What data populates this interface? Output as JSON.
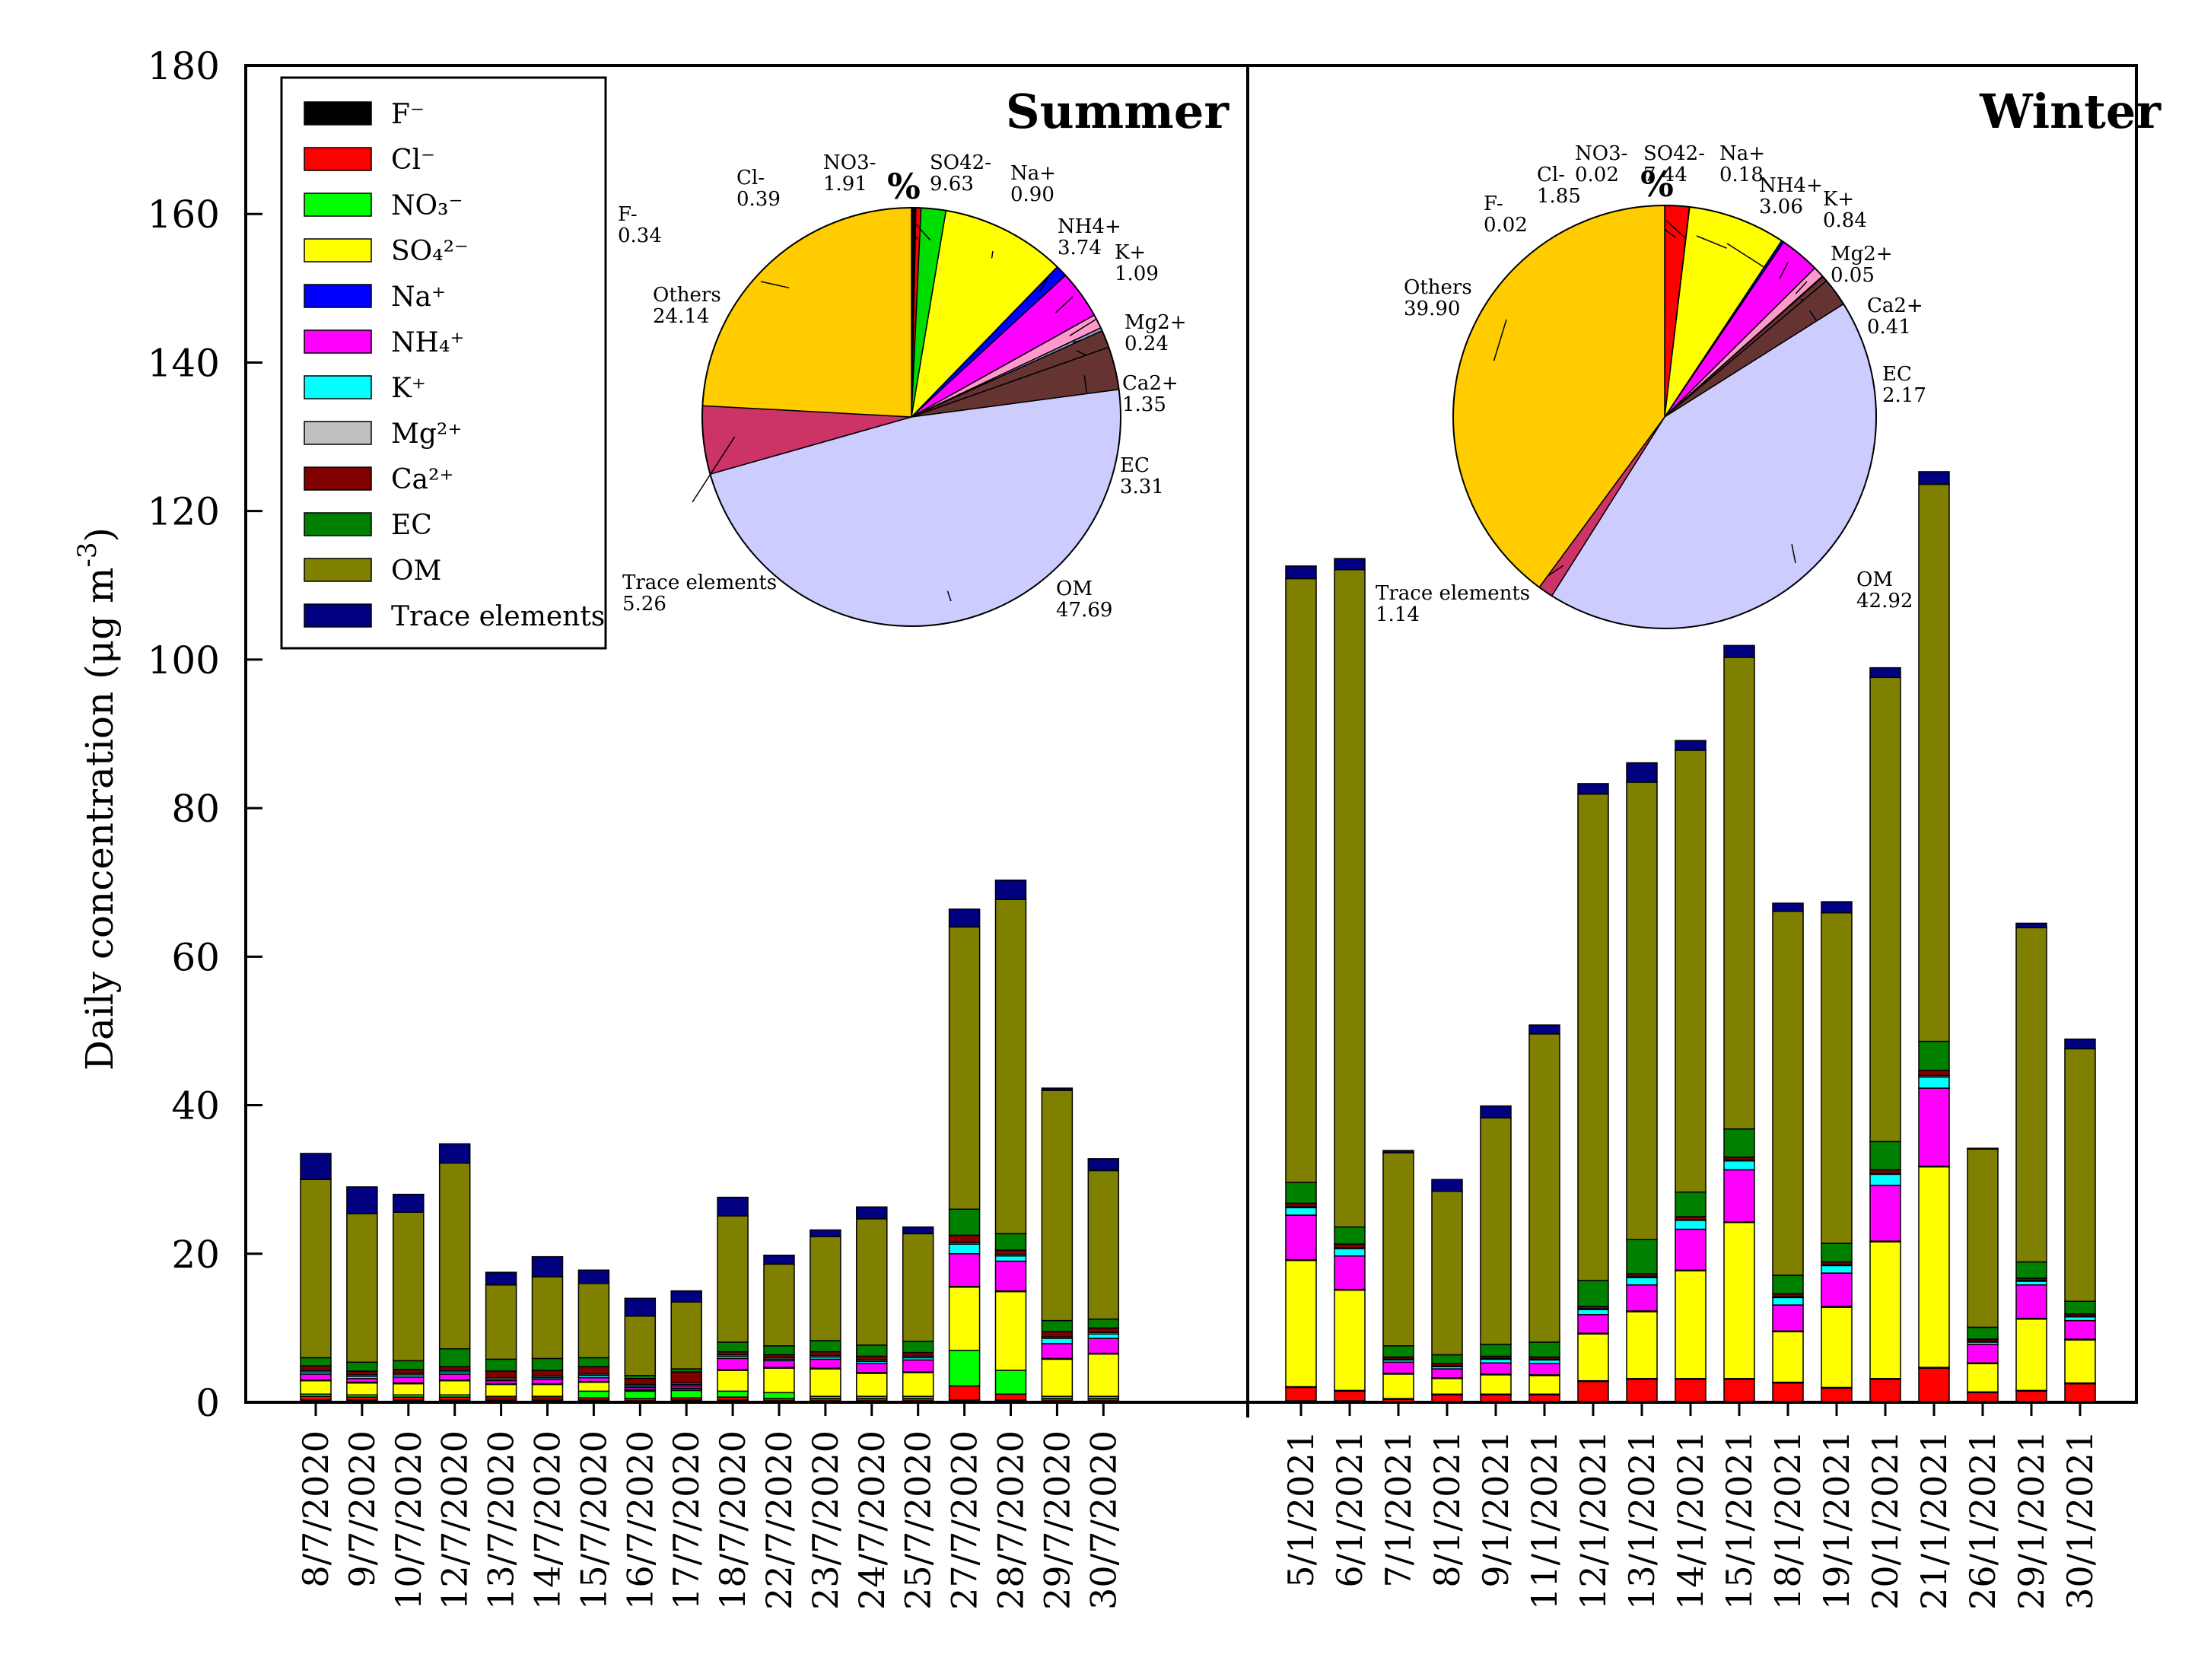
{
  "chart_data": {
    "type": "bar",
    "ylabel": "Daily concentration (μg m",
    "ylabel_sup": "-3",
    "ylabel_close": ")",
    "ylim": [
      0,
      180
    ],
    "yticks": [
      0,
      20,
      40,
      60,
      80,
      100,
      120,
      140,
      160,
      180
    ],
    "seasons": [
      {
        "name": "Summer",
        "categories": [
          "8/7/2020",
          "9/7/2020",
          "10/7/2020",
          "12/7/2020",
          "13/7/2020",
          "14/7/2020",
          "15/7/2020",
          "16/7/2020",
          "17/7/2020",
          "18/7/2020",
          "22/7/2020",
          "23/7/2020",
          "24/7/2020",
          "25/7/2020",
          "27/7/2020",
          "28/7/2020",
          "29/7/2020",
          "30/7/2020"
        ],
        "stacks": [
          [
            0.3,
            0.5,
            0.3,
            1.8,
            0.1,
            0.8,
            0.3,
            0.2,
            0.6,
            1.1,
            24.0,
            3.5
          ],
          [
            0.3,
            0.4,
            0.3,
            1.6,
            0.1,
            0.5,
            0.3,
            0.2,
            0.5,
            1.2,
            20.0,
            3.6
          ],
          [
            0.3,
            0.4,
            0.3,
            1.5,
            0.1,
            0.8,
            0.3,
            0.2,
            0.5,
            1.2,
            20.0,
            2.4
          ],
          [
            0.3,
            0.4,
            0.3,
            1.9,
            0.1,
            0.8,
            0.3,
            0.2,
            0.5,
            2.4,
            25.0,
            2.6
          ],
          [
            0.3,
            0.3,
            0.2,
            1.6,
            0.1,
            0.4,
            0.2,
            0.2,
            0.9,
            1.6,
            10.0,
            1.7
          ],
          [
            0.3,
            0.3,
            0.2,
            1.6,
            0.1,
            0.6,
            0.2,
            0.2,
            0.8,
            1.6,
            11.0,
            2.7
          ],
          [
            0.3,
            0.3,
            0.9,
            1.2,
            0.1,
            0.5,
            0.3,
            0.2,
            1.0,
            1.2,
            10.0,
            1.8
          ],
          [
            0.2,
            0.3,
            1.0,
            0.1,
            0.1,
            0.3,
            0.2,
            0.2,
            0.8,
            0.4,
            8.0,
            2.4
          ],
          [
            0.3,
            0.3,
            1.0,
            0.2,
            0.1,
            0.3,
            0.2,
            0.2,
            1.5,
            0.4,
            9.0,
            1.5
          ],
          [
            0.3,
            0.4,
            0.8,
            2.8,
            0.1,
            1.5,
            0.3,
            0.2,
            0.4,
            1.3,
            17.0,
            2.5
          ],
          [
            0.2,
            0.3,
            0.8,
            3.3,
            0.1,
            0.9,
            0.2,
            0.2,
            0.4,
            1.2,
            11.0,
            1.2
          ],
          [
            0.2,
            0.3,
            0.3,
            3.7,
            0.1,
            1.2,
            0.3,
            0.2,
            0.5,
            1.5,
            14.0,
            0.9
          ],
          [
            0.2,
            0.3,
            0.3,
            3.1,
            0.1,
            1.2,
            0.3,
            0.2,
            0.5,
            1.5,
            17.0,
            1.6
          ],
          [
            0.2,
            0.3,
            0.3,
            3.2,
            0.1,
            1.6,
            0.3,
            0.2,
            0.5,
            1.5,
            14.5,
            0.9
          ],
          [
            0.3,
            1.9,
            4.8,
            8.5,
            0.1,
            4.4,
            1.3,
            0.2,
            1.0,
            3.5,
            38.0,
            2.4
          ],
          [
            0.3,
            0.8,
            3.2,
            10.6,
            0.1,
            4.0,
            0.7,
            0.2,
            0.6,
            2.2,
            45.0,
            2.6
          ],
          [
            0.2,
            0.3,
            0.3,
            5.0,
            0.1,
            2.0,
            0.7,
            0.2,
            0.7,
            1.5,
            31.0,
            0.3
          ],
          [
            0.2,
            0.3,
            0.3,
            5.7,
            0.1,
            2.0,
            0.6,
            0.2,
            0.6,
            1.2,
            20.0,
            1.6
          ]
        ],
        "pie": {
          "labels": [
            "F-",
            "Cl-",
            "NO3-",
            "SO42-",
            "Na+",
            "NH4+",
            "K+",
            "Mg2+",
            "Ca2+",
            "EC",
            "OM",
            "Trace elements",
            "Others"
          ],
          "values": [
            "0.34",
            "0.39",
            "1.91",
            "9.63",
            "0.90",
            "3.74",
            "1.09",
            "0.24",
            "1.35",
            "3.31",
            "47.69",
            "5.26",
            "24.14"
          ],
          "title": "%"
        }
      },
      {
        "name": "Winter",
        "categories": [
          "5/1/2021",
          "6/1/2021",
          "7/1/2021",
          "8/1/2021",
          "9/1/2021",
          "11/1/2021",
          "12/1/2021",
          "13/1/2021",
          "14/1/2021",
          "15/1/2021",
          "18/1/2021",
          "19/1/2021",
          "20/1/2021",
          "21/1/2021",
          "26/1/2021",
          "29/1/2021",
          "30/1/2021"
        ],
        "stacks": [
          [
            0.2,
            1.8,
            0.1,
            17.0,
            0.1,
            6.0,
            1.0,
            0.1,
            0.5,
            2.8,
            81.3,
            1.7
          ],
          [
            0.2,
            1.3,
            0.1,
            13.5,
            0.1,
            4.5,
            1.0,
            0.1,
            0.5,
            2.3,
            88.5,
            1.5
          ],
          [
            0.1,
            0.3,
            0.1,
            3.3,
            0.1,
            1.5,
            0.3,
            0.1,
            0.3,
            1.5,
            26.0,
            0.3
          ],
          [
            0.1,
            0.9,
            0.1,
            2.1,
            0.1,
            1.2,
            0.3,
            0.1,
            0.3,
            1.2,
            22.0,
            1.6
          ],
          [
            0.1,
            0.9,
            0.1,
            2.6,
            0.1,
            1.5,
            0.5,
            0.1,
            0.3,
            1.6,
            30.5,
            1.6
          ],
          [
            0.1,
            0.9,
            0.1,
            2.5,
            0.1,
            1.5,
            0.5,
            0.1,
            0.3,
            2.0,
            41.5,
            1.2
          ],
          [
            0.1,
            2.7,
            0.1,
            6.3,
            0.1,
            2.5,
            0.7,
            0.1,
            0.3,
            3.5,
            65.5,
            1.4
          ],
          [
            0.1,
            3.0,
            0.1,
            9.0,
            0.1,
            3.5,
            1.0,
            0.1,
            0.4,
            4.6,
            61.6,
            2.6
          ],
          [
            0.1,
            3.0,
            0.1,
            14.5,
            0.1,
            5.5,
            1.2,
            0.1,
            0.4,
            3.3,
            59.5,
            1.3
          ],
          [
            0.1,
            3.0,
            0.1,
            21.0,
            0.1,
            7.0,
            1.2,
            0.1,
            0.4,
            3.8,
            63.5,
            1.6
          ],
          [
            0.1,
            2.5,
            0.1,
            6.8,
            0.1,
            3.5,
            1.0,
            0.1,
            0.4,
            2.5,
            49.0,
            1.1
          ],
          [
            0.1,
            1.8,
            0.1,
            10.8,
            0.1,
            4.5,
            1.0,
            0.1,
            0.4,
            2.5,
            44.5,
            1.5
          ],
          [
            0.1,
            3.0,
            0.1,
            18.4,
            0.1,
            7.5,
            1.5,
            0.1,
            0.5,
            3.8,
            62.5,
            1.3
          ],
          [
            0.1,
            4.5,
            0.1,
            27.0,
            0.1,
            10.5,
            1.5,
            0.2,
            0.7,
            3.9,
            75.0,
            1.7
          ],
          [
            0.1,
            1.2,
            0.1,
            3.8,
            0.1,
            2.5,
            0.3,
            0.1,
            0.3,
            1.6,
            24.0,
            0.1
          ],
          [
            0.1,
            1.4,
            0.1,
            9.6,
            0.1,
            4.5,
            0.5,
            0.1,
            0.3,
            2.2,
            45.0,
            0.6
          ],
          [
            0.1,
            2.4,
            0.1,
            5.8,
            0.1,
            2.5,
            0.5,
            0.1,
            0.3,
            1.7,
            34.0,
            1.3
          ]
        ],
        "pie": {
          "labels": [
            "F-",
            "Cl-",
            "NO3-",
            "SO42-",
            "Na+",
            "NH4+",
            "K+",
            "Mg2+",
            "Ca2+",
            "EC",
            "OM",
            "Trace elements",
            "Others"
          ],
          "values": [
            "0.02",
            "1.85",
            "0.02",
            "7.44",
            "0.18",
            "3.06",
            "0.84",
            "0.05",
            "0.41",
            "2.17",
            "42.92",
            "1.14",
            "39.90"
          ],
          "title": "%"
        }
      }
    ],
    "legend": [
      {
        "label": "F⁻",
        "color": "#000000"
      },
      {
        "label": "Cl⁻",
        "color": "#ff0000"
      },
      {
        "label": "NO₃⁻",
        "color": "#00ff00"
      },
      {
        "label": "SO₄²⁻",
        "color": "#ffff00"
      },
      {
        "label": "Na⁺",
        "color": "#0000ff"
      },
      {
        "label": "NH₄⁺",
        "color": "#ff00ff"
      },
      {
        "label": "K⁺",
        "color": "#00ffff"
      },
      {
        "label": "Mg²⁺",
        "color": "#c0c0c0"
      },
      {
        "label": "Ca²⁺",
        "color": "#800000"
      },
      {
        "label": "EC",
        "color": "#008000"
      },
      {
        "label": "OM",
        "color": "#808000"
      },
      {
        "label": "Trace elements",
        "color": "#000080"
      }
    ],
    "pie_colors": [
      "#000000",
      "#ff0000",
      "#00ff00",
      "#ffff00",
      "#0000ff",
      "#ff00ff",
      "#00ffff",
      "#c0c0c0",
      "#800000",
      "#008000",
      "#808000",
      "#000080",
      "#ffcc00"
    ],
    "pie_slice_colors": [
      "#000000",
      "#ff0000",
      "#00dd00",
      "#ffff00",
      "#0000ff",
      "#ff00ff",
      "#ff99cc",
      "#9999cc",
      "#663333",
      "#663333",
      "#ccccff",
      "#cc3366",
      "#ffcc00"
    ]
  }
}
